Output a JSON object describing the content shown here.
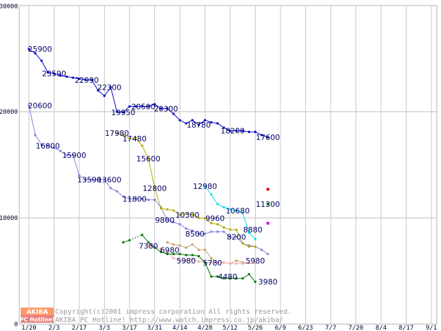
{
  "chart_data": {
    "type": "line",
    "title": "",
    "xlabel": "",
    "ylabel": "",
    "ylim": [
      0,
      30000
    ],
    "yticks": [
      "0",
      "10000",
      "20000",
      "30000"
    ],
    "categories": [
      "1/20",
      "2/3",
      "2/17",
      "3/3",
      "3/17",
      "3/31",
      "4/14",
      "4/28",
      "5/12",
      "5/26",
      "6/9",
      "6/23",
      "7/7",
      "7/20",
      "8/4",
      "8/17",
      "9/1"
    ],
    "series": [
      {
        "name": "series-top",
        "color": "#0000cc",
        "points": [
          [
            0,
            25900
          ],
          [
            0.25,
            25500
          ],
          [
            0.5,
            24800
          ],
          [
            0.75,
            23700
          ],
          [
            1,
            23590
          ],
          [
            1.25,
            23400
          ],
          [
            1.5,
            23300
          ],
          [
            1.75,
            23200
          ],
          [
            2,
            23100
          ],
          [
            2.25,
            22990
          ],
          [
            2.5,
            22990
          ],
          [
            2.75,
            22000
          ],
          [
            3,
            21500
          ],
          [
            3.25,
            22300
          ],
          [
            3.5,
            20000
          ],
          [
            3.75,
            19950
          ],
          [
            4,
            20500
          ],
          [
            4.25,
            20500
          ],
          [
            4.5,
            20500
          ],
          [
            4.75,
            20500
          ],
          [
            5,
            20700
          ],
          [
            5.25,
            20300
          ],
          [
            5.5,
            20300
          ],
          [
            5.75,
            19800
          ],
          [
            6,
            19200
          ],
          [
            6.25,
            18900
          ],
          [
            6.5,
            19200
          ],
          [
            6.75,
            18780
          ],
          [
            7,
            19200
          ],
          [
            7.25,
            19000
          ],
          [
            7.5,
            18900
          ],
          [
            7.75,
            18500
          ],
          [
            8,
            18200
          ],
          [
            8.25,
            18200
          ],
          [
            8.5,
            18200
          ],
          [
            8.75,
            18100
          ],
          [
            9,
            18100
          ],
          [
            9.25,
            17800
          ],
          [
            9.5,
            17600
          ]
        ]
      },
      {
        "name": "series-second",
        "color": "#8080e0",
        "points": [
          [
            0,
            20600
          ],
          [
            0.25,
            17800
          ],
          [
            0.5,
            16900
          ],
          [
            0.75,
            16800
          ],
          [
            1,
            16600
          ],
          [
            1.25,
            16300
          ],
          [
            1.5,
            15900
          ],
          [
            1.75,
            15900
          ],
          [
            2,
            14000
          ],
          [
            2.25,
            13590
          ],
          [
            2.5,
            13590
          ],
          [
            2.75,
            13600
          ],
          [
            3,
            13600
          ],
          [
            3.25,
            12800
          ],
          [
            3.5,
            12500
          ],
          [
            3.75,
            12000
          ],
          [
            4,
            11800
          ],
          [
            4.25,
            11800
          ],
          [
            4.5,
            11800
          ],
          [
            4.75,
            11700
          ],
          [
            5,
            11700
          ],
          [
            5.25,
            11000
          ],
          [
            5.5,
            9800
          ],
          [
            5.75,
            9600
          ],
          [
            6,
            9400
          ],
          [
            6.25,
            9000
          ],
          [
            6.5,
            8800
          ],
          [
            6.75,
            8500
          ],
          [
            7,
            8500
          ],
          [
            7.25,
            8700
          ],
          [
            7.5,
            8700
          ],
          [
            7.75,
            8700
          ],
          [
            8,
            8200
          ],
          [
            8.25,
            8200
          ],
          [
            8.5,
            7600
          ],
          [
            8.75,
            7400
          ],
          [
            9,
            7300
          ],
          [
            9.25,
            7000
          ],
          [
            9.5,
            6600
          ]
        ]
      },
      {
        "name": "series-olive",
        "color": "#b8a800",
        "points": [
          [
            3.5,
            17980
          ],
          [
            3.75,
            17800
          ],
          [
            4,
            17480
          ],
          [
            4.25,
            17480
          ],
          [
            4.5,
            16800
          ],
          [
            4.75,
            15600
          ],
          [
            5,
            12800
          ],
          [
            5.25,
            10900
          ],
          [
            5.5,
            10800
          ],
          [
            5.75,
            10700
          ],
          [
            6,
            10300
          ],
          [
            6.25,
            10400
          ],
          [
            6.5,
            10300
          ],
          [
            6.75,
            10000
          ],
          [
            7,
            9960
          ],
          [
            7.25,
            9500
          ],
          [
            7.5,
            9400
          ],
          [
            7.75,
            9100
          ],
          [
            8,
            8900
          ],
          [
            8.25,
            8880
          ],
          [
            8.5,
            7600
          ],
          [
            8.75,
            7300
          ],
          [
            9,
            7300
          ]
        ]
      },
      {
        "name": "series-cyan",
        "color": "#00e0e8",
        "points": [
          [
            7,
            12980
          ],
          [
            7.25,
            12200
          ],
          [
            7.5,
            11300
          ],
          [
            7.75,
            11000
          ],
          [
            8,
            10800
          ],
          [
            8.25,
            10680
          ],
          [
            8.5,
            10500
          ],
          [
            8.75,
            8600
          ],
          [
            9,
            8000
          ]
        ]
      },
      {
        "name": "series-tan",
        "color": "#c8a070",
        "points": [
          [
            5.5,
            7700
          ],
          [
            5.75,
            7500
          ],
          [
            6,
            7400
          ],
          [
            6.25,
            7200
          ],
          [
            6.5,
            7500
          ],
          [
            6.75,
            7000
          ],
          [
            7,
            7000
          ],
          [
            7.25,
            6200
          ],
          [
            7.5,
            5800
          ],
          [
            7.75,
            5800
          ],
          [
            8,
            5700
          ],
          [
            8.25,
            5980
          ],
          [
            8.5,
            5800
          ],
          [
            8.75,
            5750
          ]
        ]
      },
      {
        "name": "series-pink",
        "color": "#f0b0b0",
        "points": [
          [
            4.75,
            7380
          ],
          [
            5,
            7200
          ],
          [
            5.25,
            7100
          ],
          [
            5.5,
            6800
          ],
          [
            5.75,
            6200
          ],
          [
            6,
            6000
          ],
          [
            6.25,
            5980
          ],
          [
            6.5,
            6100
          ],
          [
            6.75,
            5900
          ],
          [
            7,
            5800
          ],
          [
            7.25,
            5800
          ],
          [
            7.5,
            5780
          ],
          [
            7.75,
            5780
          ],
          [
            8,
            5700
          ],
          [
            8.25,
            5700
          ],
          [
            8.5,
            5700
          ],
          [
            8.75,
            5750
          ],
          [
            9,
            5750
          ]
        ]
      },
      {
        "name": "series-green",
        "color": "#007000",
        "points": [
          [
            3.75,
            7700
          ],
          [
            4,
            7900
          ],
          [
            4.5,
            8400
          ],
          [
            4.75,
            7700
          ],
          [
            5,
            7200
          ],
          [
            5.25,
            6800
          ],
          [
            5.5,
            6600
          ],
          [
            5.75,
            6600
          ],
          [
            6,
            6600
          ],
          [
            6.25,
            6500
          ],
          [
            6.5,
            6500
          ],
          [
            6.75,
            6400
          ],
          [
            7,
            5780
          ],
          [
            7.25,
            4480
          ],
          [
            7.5,
            4480
          ],
          [
            7.75,
            4300
          ],
          [
            8,
            4300
          ],
          [
            8.25,
            4300
          ],
          [
            8.5,
            4300
          ],
          [
            8.75,
            4700
          ],
          [
            9,
            3980
          ]
        ],
        "dashed_segment": [
          [
            3.75,
            4.5
          ]
        ]
      }
    ],
    "isolated_points": [
      {
        "x": 9.5,
        "y": 12700,
        "color": "#e00000"
      },
      {
        "x": 9.5,
        "y": 11300,
        "color": "#00c000"
      },
      {
        "x": 9.5,
        "y": 9500,
        "color": "#e000e0"
      }
    ],
    "data_labels": [
      {
        "text": "25900",
        "x": 0.0,
        "y": 25900
      },
      {
        "text": "23590",
        "x": 1.0,
        "y": 23590
      },
      {
        "text": "22990",
        "x": 2.3,
        "y": 22990
      },
      {
        "text": "22300",
        "x": 3.2,
        "y": 22300
      },
      {
        "text": "20600",
        "x": 0.0,
        "y": 20600
      },
      {
        "text": "19950",
        "x": 3.75,
        "y": 19950
      },
      {
        "text": "20500",
        "x": 4.55,
        "y": 20500
      },
      {
        "text": "20300",
        "x": 5.45,
        "y": 20300
      },
      {
        "text": "18780",
        "x": 6.75,
        "y": 18780
      },
      {
        "text": "18200",
        "x": 8.1,
        "y": 18200
      },
      {
        "text": "17600",
        "x": 9.5,
        "y": 17600
      },
      {
        "text": "17980",
        "x": 3.5,
        "y": 17980
      },
      {
        "text": "17480",
        "x": 4.2,
        "y": 17480
      },
      {
        "text": "16800",
        "x": 0.75,
        "y": 16800
      },
      {
        "text": "15900",
        "x": 1.8,
        "y": 15900
      },
      {
        "text": "15600",
        "x": 4.75,
        "y": 15600
      },
      {
        "text": "13590",
        "x": 2.4,
        "y": 13590
      },
      {
        "text": "13600",
        "x": 3.2,
        "y": 13600
      },
      {
        "text": "12980",
        "x": 7.0,
        "y": 12980
      },
      {
        "text": "12800",
        "x": 5.0,
        "y": 12800
      },
      {
        "text": "11800",
        "x": 4.2,
        "y": 11800
      },
      {
        "text": "10680",
        "x": 8.3,
        "y": 10680
      },
      {
        "text": "11300",
        "x": 9.5,
        "y": 11300
      },
      {
        "text": "10300",
        "x": 6.3,
        "y": 10300
      },
      {
        "text": "9960",
        "x": 7.4,
        "y": 9960
      },
      {
        "text": "9800",
        "x": 5.4,
        "y": 9800
      },
      {
        "text": "8880",
        "x": 8.9,
        "y": 8880
      },
      {
        "text": "8500",
        "x": 6.6,
        "y": 8500
      },
      {
        "text": "8200",
        "x": 8.25,
        "y": 8200
      },
      {
        "text": "7380",
        "x": 4.75,
        "y": 7380
      },
      {
        "text": "6980",
        "x": 5.6,
        "y": 6980
      },
      {
        "text": "5980",
        "x": 6.25,
        "y": 5980
      },
      {
        "text": "5780",
        "x": 7.3,
        "y": 5780
      },
      {
        "text": "5980",
        "x": 9.0,
        "y": 5980
      },
      {
        "text": "4480",
        "x": 7.9,
        "y": 4480
      },
      {
        "text": "3980",
        "x": 9.5,
        "y": 3980
      }
    ]
  },
  "footer": {
    "logo_top": "AKIBA",
    "logo_bottom": "PC Hotline!",
    "copyright": "Copyright(c)2001 impress corporation All rights reserved.",
    "site": "AKIBA PC Hotline!  http://www.watch.impress.co.jp/akiba/"
  }
}
